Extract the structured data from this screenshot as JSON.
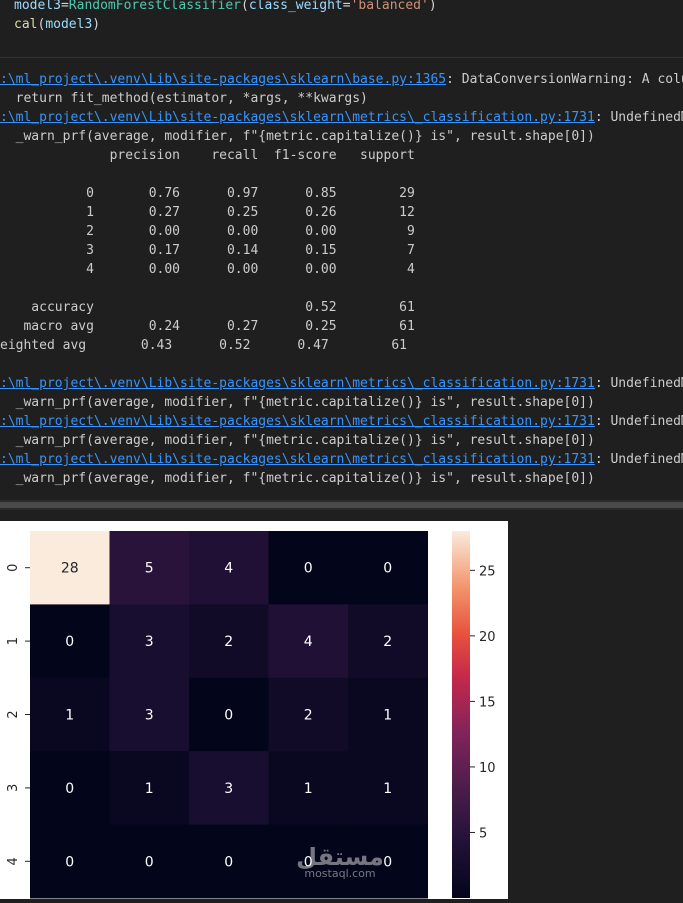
{
  "code": {
    "line1": {
      "var": "model3",
      "eq": "=",
      "cls": "RandomForestClassifier",
      "open": "(",
      "kw": "class_weight",
      "eq2": "=",
      "str": "'balanced'",
      "close": ")"
    },
    "line2": {
      "fn": "cal",
      "open": "(",
      "arg": "model3",
      "close": ")"
    }
  },
  "output": {
    "warn1_path": ":\\ml_project\\.venv\\Lib\\site-packages\\sklearn\\base.py:1365",
    "warn1_msg": ": DataConversionWarning: A colum",
    "warn1_code": "  return fit_method(estimator, *args, **kwargs)",
    "warn2_path": ":\\ml_project\\.venv\\Lib\\site-packages\\sklearn\\metrics\\_classification.py:1731",
    "warn2_msg": ": UndefinedMet",
    "warn_prf": "  _warn_prf(average, modifier, f\"{metric.capitalize()} is\", result.shape[0])",
    "report_header": "              precision    recall  f1-score   support",
    "report_rows": [
      "           0       0.76      0.97      0.85        29",
      "           1       0.27      0.25      0.26        12",
      "           2       0.00      0.00      0.00         9",
      "           3       0.17      0.14      0.15         7",
      "           4       0.00      0.00      0.00         4"
    ],
    "report_summary": [
      "    accuracy                           0.52        61",
      "   macro avg       0.24      0.27      0.25        61",
      "eighted avg       0.43      0.52      0.47        61"
    ]
  },
  "chart_data": {
    "type": "heatmap",
    "row_labels": [
      "0",
      "1",
      "2",
      "3",
      "4"
    ],
    "col_labels": [],
    "values": [
      [
        28,
        5,
        4,
        0,
        0
      ],
      [
        0,
        3,
        2,
        4,
        2
      ],
      [
        1,
        3,
        0,
        2,
        1
      ],
      [
        0,
        1,
        3,
        1,
        1
      ],
      [
        0,
        0,
        0,
        0,
        0
      ]
    ],
    "colorbar_ticks": [
      25,
      20,
      15,
      10,
      5
    ],
    "vmin": 0,
    "vmax": 28,
    "colormap": "rocket"
  },
  "watermark": {
    "arabic": "مستقل",
    "latin": "mostaql.com"
  }
}
